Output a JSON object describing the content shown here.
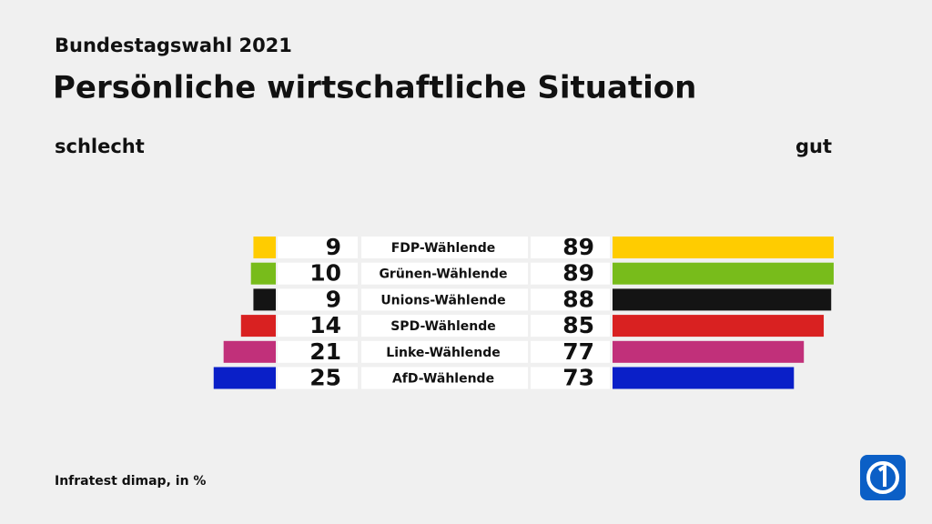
{
  "chart_data": {
    "type": "diverging_bar",
    "subtitle": "Bundestagswahl 2021",
    "title": "Persönliche wirtschaftliche Situation",
    "categories": [
      "FDP-Wählende",
      "Grünen-Wählende",
      "Unions-Wählende",
      "SPD-Wählende",
      "Linke-Wählende",
      "AfD-Wählende"
    ],
    "colors": [
      "#ffcc00",
      "#78bc1b",
      "#141414",
      "#d92121",
      "#c1307a",
      "#0a1fc8"
    ],
    "series": [
      {
        "name": "schlecht",
        "values": [
          9,
          10,
          9,
          14,
          21,
          25
        ]
      },
      {
        "name": "gut",
        "values": [
          89,
          89,
          88,
          85,
          77,
          73
        ]
      }
    ],
    "source": "Infratest dimap, in %"
  }
}
